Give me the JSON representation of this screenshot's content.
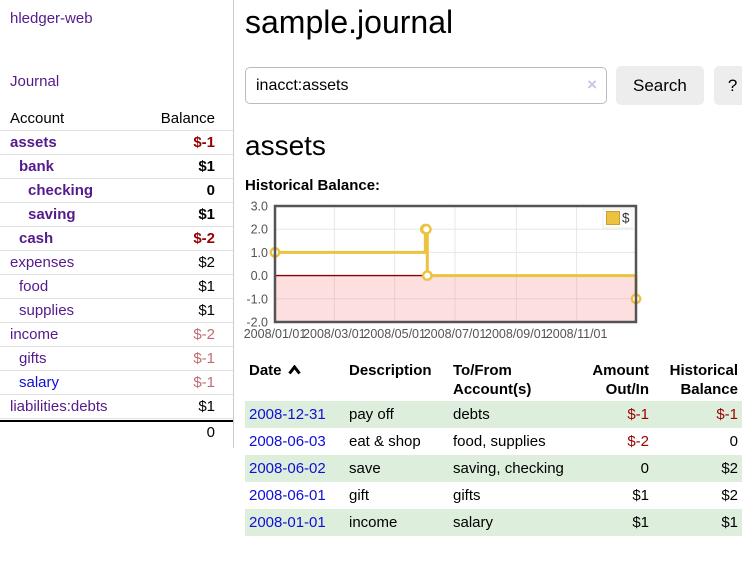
{
  "app": {
    "brand": "hledger-web"
  },
  "sidebar": {
    "journal_link": "Journal",
    "accounts": {
      "col_account": "Account",
      "col_balance": "Balance",
      "rows": [
        {
          "account": "assets",
          "balance": "$-1",
          "depth": 1,
          "bold": true,
          "link_tone": "purple",
          "balance_tone": "strong-negative"
        },
        {
          "account": "bank",
          "balance": "$1",
          "depth": 2,
          "bold": true,
          "link_tone": "purple",
          "balance_tone": "normal"
        },
        {
          "account": "checking",
          "balance": "0",
          "depth": 3,
          "bold": true,
          "link_tone": "purple",
          "balance_tone": "normal"
        },
        {
          "account": "saving",
          "balance": "$1",
          "depth": 3,
          "bold": true,
          "link_tone": "purple",
          "balance_tone": "normal"
        },
        {
          "account": "cash",
          "balance": "$-2",
          "depth": 2,
          "bold": true,
          "link_tone": "purple",
          "balance_tone": "strong-negative"
        },
        {
          "account": "expenses",
          "balance": "$2",
          "depth": 1,
          "bold": false,
          "link_tone": "purple",
          "balance_tone": "normal"
        },
        {
          "account": "food",
          "balance": "$1",
          "depth": 2,
          "bold": false,
          "link_tone": "purple",
          "balance_tone": "normal"
        },
        {
          "account": "supplies",
          "balance": "$1",
          "depth": 2,
          "bold": false,
          "link_tone": "purple",
          "balance_tone": "normal"
        },
        {
          "account": "income",
          "balance": "$-2",
          "depth": 1,
          "bold": false,
          "link_tone": "purple",
          "balance_tone": "soft-negative"
        },
        {
          "account": "gifts",
          "balance": "$-1",
          "depth": 2,
          "bold": false,
          "link_tone": "purple",
          "balance_tone": "soft-negative"
        },
        {
          "account": "salary",
          "balance": "$-1",
          "depth": 2,
          "bold": false,
          "link_tone": "blue",
          "balance_tone": "soft-negative"
        },
        {
          "account": "liabilities:debts",
          "balance": "$1",
          "depth": 1,
          "bold": false,
          "link_tone": "purple",
          "balance_tone": "normal"
        }
      ],
      "total": "0"
    }
  },
  "main": {
    "title": "sample.journal",
    "search": {
      "value": "inacct:assets",
      "search_label": "Search",
      "help_label": "?"
    },
    "account_heading": "assets",
    "chart_heading": "Historical Balance:"
  },
  "icons": {
    "clear_search": "×",
    "sort_ascending": "chevron-up"
  },
  "chart_data": {
    "type": "line",
    "title": "Historical Balance",
    "step": true,
    "x_range": [
      "2008-01-01",
      "2008-12-31"
    ],
    "ylim": [
      -2,
      3
    ],
    "x_ticks": [
      [
        "2008-01-01",
        "2008/01/01"
      ],
      [
        "2008-03-01",
        "2008/03/01"
      ],
      [
        "2008-05-01",
        "2008/05/01"
      ],
      [
        "2008-07-01",
        "2008/07/01"
      ],
      [
        "2008-09-01",
        "2008/09/01"
      ],
      [
        "2008-11-01",
        "2008/11/01"
      ]
    ],
    "y_ticks": [
      [
        3,
        "3.0"
      ],
      [
        2,
        "2.0"
      ],
      [
        1,
        "1.0"
      ],
      [
        0,
        "0.0"
      ],
      [
        -1,
        "-1.0"
      ],
      [
        -2,
        "-2.0"
      ]
    ],
    "series": [
      {
        "name": "$",
        "color": "#edc240",
        "points": [
          [
            "2008-01-01",
            1
          ],
          [
            "2008-06-01",
            2
          ],
          [
            "2008-06-02",
            2
          ],
          [
            "2008-06-03",
            0
          ],
          [
            "2008-12-31",
            -1
          ]
        ]
      }
    ],
    "grid": true,
    "zero_line": true,
    "negative_region": true,
    "legend": [
      {
        "label": "$",
        "color": "#edc240"
      }
    ],
    "legend_position": "top-right"
  },
  "register": {
    "headers": {
      "date": "Date",
      "description": "Description",
      "accounts": "To/From Account(s)",
      "amount": "Amount Out/In",
      "balance": "Historical Balance"
    },
    "sort": {
      "column": "date",
      "direction": "ascending"
    },
    "rows": [
      {
        "date": "2008-12-31",
        "description": "pay off",
        "accounts": "debts",
        "amount": "$-1",
        "balance": "$-1",
        "amount_tone": "negative",
        "balance_tone": "negative"
      },
      {
        "date": "2008-06-03",
        "description": "eat & shop",
        "accounts": "food, supplies",
        "amount": "$-2",
        "balance": "0",
        "amount_tone": "negative",
        "balance_tone": "normal"
      },
      {
        "date": "2008-06-02",
        "description": "save",
        "accounts": "saving, checking",
        "amount": "0",
        "balance": "$2",
        "amount_tone": "normal",
        "balance_tone": "normal"
      },
      {
        "date": "2008-06-01",
        "description": "gift",
        "accounts": "gifts",
        "amount": "$1",
        "balance": "$2",
        "amount_tone": "normal",
        "balance_tone": "normal"
      },
      {
        "date": "2008-01-01",
        "description": "income",
        "accounts": "salary",
        "amount": "$1",
        "balance": "$1",
        "amount_tone": "normal",
        "balance_tone": "normal"
      }
    ]
  },
  "colors": {
    "link_purple": "#551a8b",
    "link_blue": "#0f0fd6",
    "negative_strong": "#990000",
    "negative_soft": "#bd6c71",
    "row_alt_green": "#ddeedd",
    "button_bg": "#ededed",
    "chart_line": "#edc240",
    "chart_zero": "#8b0000",
    "chart_negative_fill": "#fbdcdc",
    "chart_border": "#545454"
  }
}
